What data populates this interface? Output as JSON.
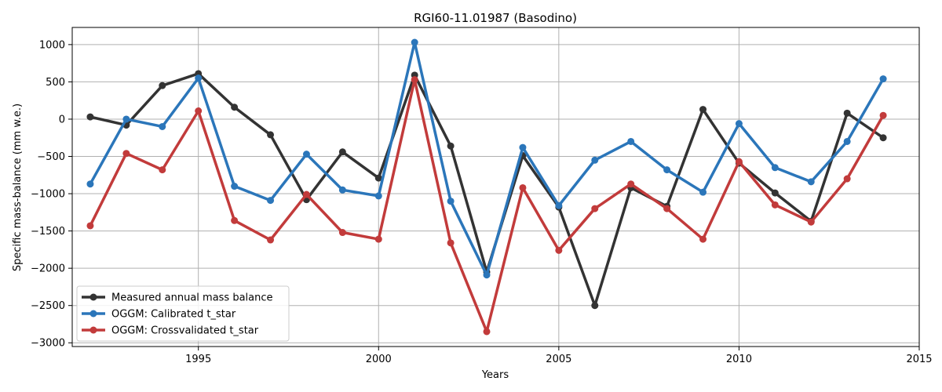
{
  "chart_data": {
    "type": "line",
    "title": "RGI60-11.01987 (Basodino)",
    "xlabel": "Years",
    "ylabel": "Specific mass-balance (mm w.e.)",
    "xlim": [
      1991.5,
      2015.0
    ],
    "ylim": [
      -3050,
      1230
    ],
    "xticks": [
      1995,
      2000,
      2005,
      2010,
      2015
    ],
    "yticks": [
      -3000,
      -2500,
      -2000,
      -1500,
      -1000,
      -500,
      0,
      500,
      1000
    ],
    "grid": true,
    "legend_position": "lower-left",
    "x": [
      1992,
      1993,
      1994,
      1995,
      1996,
      1997,
      1998,
      1999,
      2000,
      2001,
      2002,
      2003,
      2004,
      2005,
      2006,
      2007,
      2008,
      2009,
      2010,
      2011,
      2012,
      2013,
      2014
    ],
    "series": [
      {
        "name": "Measured annual mass balance",
        "color": "#333333",
        "values": [
          30,
          -80,
          450,
          610,
          160,
          -210,
          -1080,
          -440,
          -790,
          590,
          -360,
          -2050,
          -490,
          -1180,
          -2500,
          -920,
          -1170,
          130,
          -590,
          -990,
          -1370,
          80,
          -250
        ]
      },
      {
        "name": "OGGM: Calibrated t_star",
        "color": "#2b76ba",
        "values": [
          -870,
          0,
          -100,
          550,
          -900,
          -1090,
          -470,
          -950,
          -1030,
          1030,
          -1100,
          -2090,
          -380,
          -1160,
          -550,
          -300,
          -680,
          -980,
          -60,
          -650,
          -840,
          -300,
          540
        ]
      },
      {
        "name": "OGGM: Crossvalidated t_star",
        "color": "#c23b3b",
        "values": [
          -1430,
          -460,
          -680,
          110,
          -1360,
          -1620,
          -1010,
          -1520,
          -1610,
          530,
          -1660,
          -2850,
          -920,
          -1760,
          -1200,
          -870,
          -1200,
          -1610,
          -570,
          -1150,
          -1380,
          -800,
          50
        ]
      }
    ]
  }
}
